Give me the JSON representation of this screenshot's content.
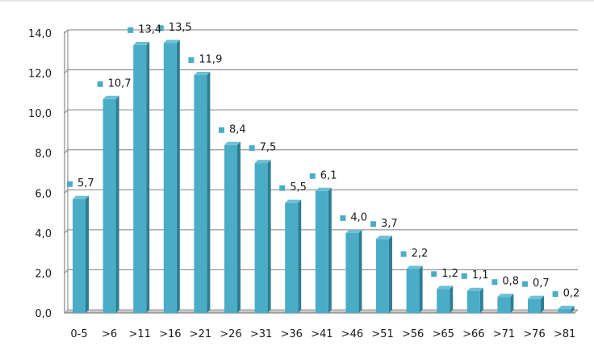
{
  "chart_data": {
    "type": "bar",
    "title": "",
    "xlabel": "",
    "ylabel": "",
    "categories": [
      ">81",
      ">76",
      ">71",
      ">66",
      ">65",
      ">56",
      ">51",
      ">46",
      ">41",
      ">36",
      ">31",
      ">26",
      ">21",
      ">16",
      ">11",
      ">6",
      "0-5"
    ],
    "values": [
      0.2,
      0.7,
      0.8,
      1.1,
      1.2,
      2.2,
      3.7,
      4.0,
      6.1,
      5.5,
      7.5,
      8.4,
      11.9,
      13.5,
      13.4,
      10.7,
      5.7
    ],
    "data_labels": [
      "0,2",
      "0,7",
      "0,8",
      "1,1",
      "1,2",
      "2,2",
      "3,7",
      "4,0",
      "6,1",
      "5,5",
      "7,5",
      "8,4",
      "11,9",
      "13,5",
      "13,4",
      "10,7",
      "5,7"
    ],
    "ylim": [
      0,
      14
    ],
    "y_ticks": [
      "0,0",
      "2,0",
      "4,0",
      "6,0",
      "8,0",
      "10,0",
      "12,0",
      "14,0"
    ],
    "grid": true,
    "legend": false,
    "colors": {
      "bar_front": "#4bacc6",
      "bar_side": "#2d7e92",
      "bar_top": "#6dc0d6",
      "marker": "#4bacc6",
      "gridline": "#7f7f7f",
      "floor": "#c8c8c8"
    }
  }
}
